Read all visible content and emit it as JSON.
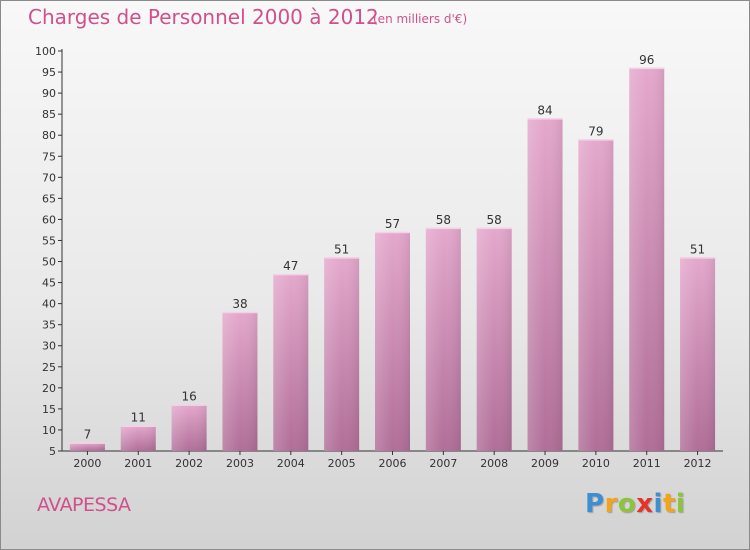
{
  "chart_data": {
    "type": "bar",
    "title": "Charges de Personnel 2000 à 2012",
    "subtitle": "(en milliers d'€)",
    "categories": [
      "2000",
      "2001",
      "2002",
      "2003",
      "2004",
      "2005",
      "2006",
      "2007",
      "2008",
      "2009",
      "2010",
      "2011",
      "2012"
    ],
    "values": [
      7,
      11,
      16,
      38,
      47,
      51,
      57,
      58,
      58,
      84,
      79,
      96,
      51
    ],
    "ylim": [
      5,
      100
    ],
    "yticks": [
      5,
      10,
      15,
      20,
      25,
      30,
      35,
      40,
      45,
      50,
      55,
      60,
      65,
      70,
      75,
      80,
      85,
      90,
      95,
      100
    ],
    "xlabel": "",
    "ylabel": "",
    "grid": false,
    "bar_color_top": "#e4a8cc",
    "bar_color_bottom": "#b06e98"
  },
  "footer": {
    "commune": "AVAPESSA",
    "brand": {
      "letters": [
        "P",
        "r",
        "o",
        "x",
        "i",
        "t",
        "i"
      ],
      "colors": [
        "#3f8fd0",
        "#f2a41a",
        "#8cc43c",
        "#e6332a",
        "#3f8fd0",
        "#f2a41a",
        "#8cc43c"
      ]
    }
  },
  "colors": {
    "accent_text": "#d0508e",
    "axis": "#333333"
  }
}
